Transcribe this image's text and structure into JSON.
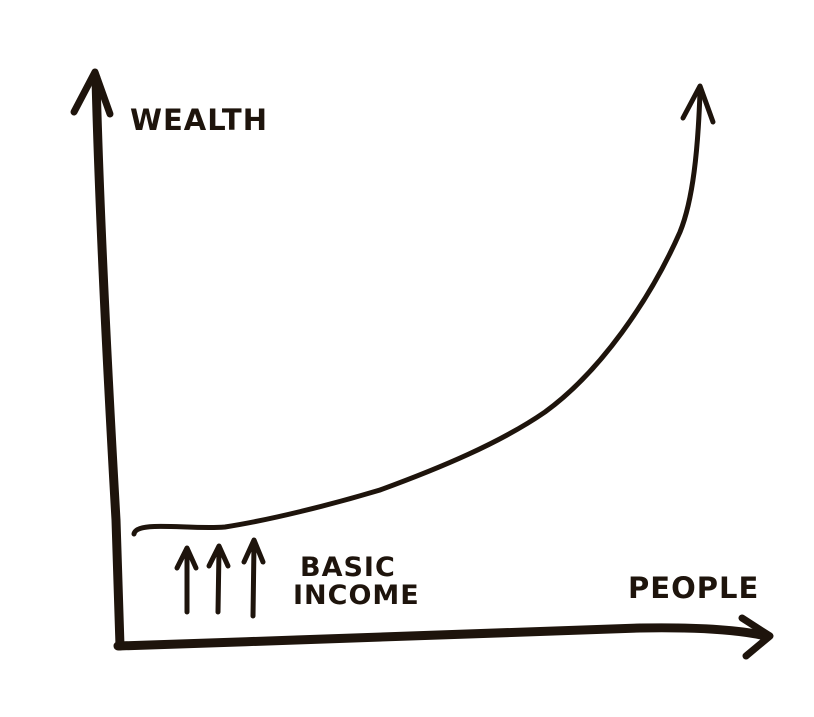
{
  "diagram": {
    "y_axis_label": "WEALTH",
    "x_axis_label": "PEOPLE",
    "annotation_line1": "BASIC",
    "annotation_line2": "INCOME",
    "ink_color": "#1e140c",
    "background_color": "#ffffff"
  }
}
